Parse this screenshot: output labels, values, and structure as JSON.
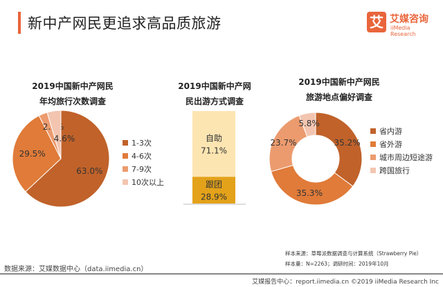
{
  "header": {
    "title": "新中产网民更追求高品质旅游",
    "logo_icon_text": "艾",
    "logo_cn": "艾媒咨询",
    "logo_en": "iiMedia Research"
  },
  "colors": {
    "accent": "#E9653B",
    "c1": "#C0622A",
    "c2": "#E07B39",
    "c3": "#EC9B6F",
    "c4": "#F3C5B0",
    "self": "#FDE5B2",
    "group": "#E3A21A"
  },
  "chart_data": [
    {
      "type": "pie",
      "title_line1": "2019中国新中产网民",
      "title_line2": "年均旅行次数调查",
      "legend_position": "right",
      "categories": [
        "1-3次",
        "4-6次",
        "7-9次",
        "10次以上"
      ],
      "values": [
        63.0,
        29.5,
        2.9,
        4.6
      ],
      "labels": [
        "63.0%",
        "29.5%",
        "2.9%",
        "4.6%"
      ]
    },
    {
      "type": "bar",
      "stacked": true,
      "title_line1": "2019中国新中产网",
      "title_line2": "民出游方式调查",
      "categories": [
        "自助",
        "跟团"
      ],
      "values": [
        71.1,
        28.9
      ],
      "labels": [
        "71.1%",
        "28.9%"
      ]
    },
    {
      "type": "pie",
      "donut": true,
      "title_line1": "2019中国新中产网民",
      "title_line2": "旅游地点偏好调查",
      "legend_position": "right",
      "categories": [
        "省内游",
        "省外游",
        "城市周边短途游",
        "跨国旅行"
      ],
      "values": [
        35.2,
        35.3,
        23.7,
        5.8
      ],
      "labels": [
        "35.2%",
        "35.3%",
        "23.7%",
        "5.8%"
      ]
    }
  ],
  "notes": {
    "sample_source": "样本来源：草莓派数据调查与计算系统（Strawberry Pie）",
    "sample_size": "样本量：N=2263；调研时间：2019年10月"
  },
  "footer": {
    "data_source": "数据来源：艾媒数据中心（data.iimedia.cn）",
    "report": "艾媒报告中心：report.iimedia.cn  ©2019  iiMedia Research  Inc"
  }
}
